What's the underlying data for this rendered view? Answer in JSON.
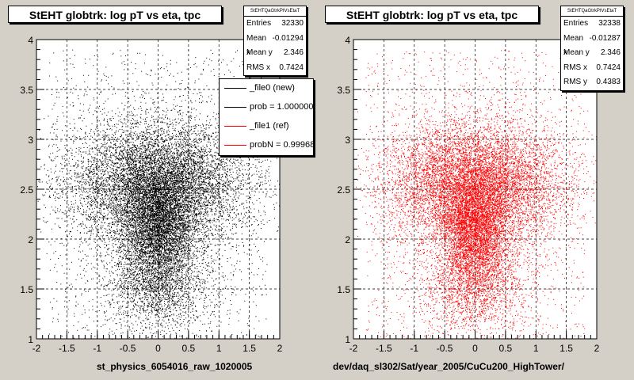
{
  "chart_data": [
    {
      "type": "scatter",
      "title": "StEHT globtrk: log pT vs eta, tpc",
      "xlabel": "st_physics_6054016_raw_1020005",
      "ylabel": "",
      "xlim": [
        -2,
        2
      ],
      "ylim": [
        1,
        4
      ],
      "xticks": [
        "-2",
        "-1.5",
        "-1",
        "-0.5",
        "0",
        "0.5",
        "1",
        "1.5",
        "2"
      ],
      "yticks": [
        "1",
        "1.5",
        "2",
        "2.5",
        "3",
        "3.5",
        "4"
      ],
      "grid": true,
      "point_color": "#000000",
      "stats": {
        "name": "StEHTQaGtrkPtVsEtaT",
        "rows": [
          {
            "label": "Entries",
            "value": "32330"
          },
          {
            "label": "Mean x",
            "value": "-0.01294"
          },
          {
            "label": "Mean y",
            "value": "2.346"
          },
          {
            "label": "RMS x",
            "value": "0.7424"
          }
        ]
      },
      "legend": {
        "placement": "top-right",
        "entries": [
          {
            "label": "_file0 (new)",
            "color": "#000000"
          },
          {
            "label": "prob = 1.000000",
            "color": "#000000"
          },
          {
            "label": "_file1 (ref)",
            "color": "#ff0000"
          },
          {
            "label": "probN = 0.999687",
            "color": "#ff0000"
          }
        ]
      },
      "distribution": {
        "entries": 32330,
        "mean_x": -0.01294,
        "mean_y": 2.346,
        "rms_x": 0.7424
      }
    },
    {
      "type": "scatter",
      "title": "StEHT globtrk: log pT vs eta, tpc",
      "xlabel": "dev/daq_sl302/Sat/year_2005/CuCu200_HighTower/",
      "ylabel": "",
      "xlim": [
        -2,
        2
      ],
      "ylim": [
        1,
        4
      ],
      "xticks": [
        "-2",
        "-1.5",
        "-1",
        "-0.5",
        "0",
        "0.5",
        "1",
        "1.5",
        "2"
      ],
      "yticks": [
        "1",
        "1.5",
        "2",
        "2.5",
        "3",
        "3.5",
        "4"
      ],
      "grid": true,
      "point_color": "#ff0000",
      "stats": {
        "name": "StEHTQaGtrkPtVsEtaT",
        "rows": [
          {
            "label": "Entries",
            "value": "32338"
          },
          {
            "label": "Mean x",
            "value": "-0.01287"
          },
          {
            "label": "Mean y",
            "value": "2.346"
          },
          {
            "label": "RMS x",
            "value": "0.7424"
          },
          {
            "label": "RMS y",
            "value": "0.4383"
          }
        ]
      },
      "distribution": {
        "entries": 32338,
        "mean_x": -0.01287,
        "mean_y": 2.346,
        "rms_x": 0.7424,
        "rms_y": 0.4383
      }
    }
  ]
}
